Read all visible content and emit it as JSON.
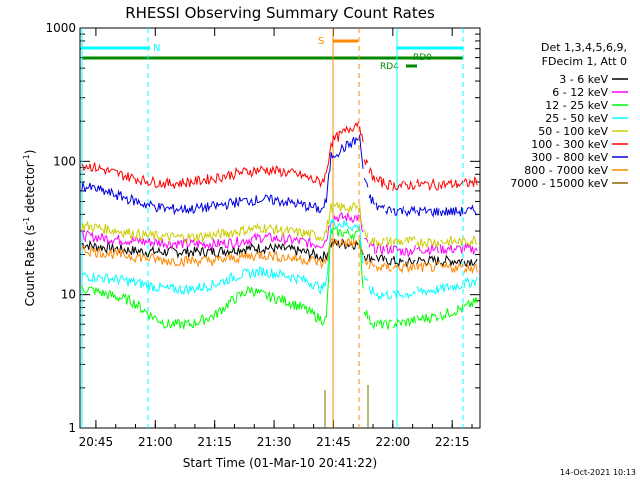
{
  "chart_data": {
    "type": "line",
    "title": "RHESSI Observing Summary Count Rates",
    "xlabel": "Start Time (01-Mar-10 20:41:22)",
    "ylabel": "Count Rate (s⁻¹ detector⁻¹)",
    "ylabel_parts": {
      "pre": "Count Rate (s",
      "sup1": "-1",
      "mid": " detector",
      "sup2": "-1",
      "post": ")"
    },
    "yscale": "log",
    "ylim": [
      1,
      1000
    ],
    "xlim_minutes": [
      20.683,
      22.367
    ],
    "x_ticks": [
      {
        "label": "20:45",
        "h": 20.75
      },
      {
        "label": "21:00",
        "h": 21.0
      },
      {
        "label": "21:15",
        "h": 21.25
      },
      {
        "label": "21:30",
        "h": 21.5
      },
      {
        "label": "21:45",
        "h": 21.75
      },
      {
        "label": "22:00",
        "h": 22.0
      },
      {
        "label": "22:15",
        "h": 22.25
      }
    ],
    "y_ticks": [
      {
        "label": "1",
        "v": 1
      },
      {
        "label": "10",
        "v": 10
      },
      {
        "label": "100",
        "v": 100
      },
      {
        "label": "1000",
        "v": 1000
      }
    ],
    "legend_header": [
      "Det 1,3,4,5,6,9,",
      "FDecim 1, Att 0"
    ],
    "series": [
      {
        "name": "3 - 6 keV",
        "color": "#000000",
        "x": [
          20.69,
          20.75,
          20.85,
          20.95,
          21.05,
          21.15,
          21.25,
          21.35,
          21.45,
          21.55,
          21.62,
          21.67,
          21.7,
          21.72,
          21.74,
          21.86,
          21.88,
          21.9,
          21.93,
          21.97,
          22.0,
          22.05,
          22.1,
          22.2,
          22.3,
          22.36
        ],
        "y": [
          24,
          23,
          22,
          21,
          21,
          21,
          21,
          22,
          22.5,
          22,
          21,
          20,
          19,
          20,
          24,
          24,
          20,
          19,
          19,
          18,
          18,
          17,
          18,
          18,
          18,
          18
        ]
      },
      {
        "name": "6 - 12 keV",
        "color": "#ff00ff",
        "x": [
          20.69,
          20.75,
          20.85,
          20.95,
          21.05,
          21.15,
          21.25,
          21.35,
          21.45,
          21.55,
          21.62,
          21.67,
          21.7,
          21.72,
          21.74,
          21.86,
          21.88,
          21.9,
          21.93,
          21.97,
          22.0,
          22.05,
          22.1,
          22.2,
          22.3,
          22.36
        ],
        "y": [
          28,
          27,
          26,
          25,
          24.5,
          24,
          24,
          25,
          27,
          26,
          25,
          24,
          24,
          26,
          38,
          38,
          26,
          23,
          22,
          22,
          22,
          21,
          22,
          22,
          22,
          22
        ]
      },
      {
        "name": "12 - 25 keV",
        "color": "#00ff00",
        "x": [
          20.69,
          20.72,
          20.8,
          20.9,
          20.98,
          21.05,
          21.15,
          21.25,
          21.32,
          21.4,
          21.45,
          21.55,
          21.62,
          21.67,
          21.7,
          21.72,
          21.74,
          21.86,
          21.88,
          21.9,
          21.93,
          21.97,
          22.0,
          22.05,
          22.1,
          22.2,
          22.3,
          22.36
        ],
        "y": [
          11,
          11,
          10,
          9,
          7,
          6,
          6,
          7,
          9,
          11,
          10,
          9,
          8,
          7,
          6.5,
          6.5,
          30,
          28,
          8,
          6.5,
          6,
          6,
          6,
          6.2,
          6.5,
          7,
          8,
          9
        ]
      },
      {
        "name": "25 - 50 keV",
        "color": "#00ffff",
        "x": [
          20.69,
          20.75,
          20.85,
          20.95,
          21.05,
          21.15,
          21.25,
          21.35,
          21.45,
          21.55,
          21.62,
          21.67,
          21.7,
          21.72,
          21.74,
          21.86,
          21.88,
          21.9,
          21.93,
          21.97,
          22.0,
          22.05,
          22.1,
          22.2,
          22.3,
          22.36
        ],
        "y": [
          14,
          13.5,
          13,
          12,
          11,
          11,
          12,
          14,
          15,
          14,
          13,
          12,
          11,
          12,
          35,
          32,
          14,
          11,
          10,
          10,
          10,
          10,
          10.5,
          11,
          12,
          13
        ]
      },
      {
        "name": "50 - 100 keV",
        "color": "#cccc00",
        "x": [
          20.69,
          20.75,
          20.85,
          20.95,
          21.05,
          21.15,
          21.25,
          21.35,
          21.45,
          21.55,
          21.62,
          21.67,
          21.7,
          21.72,
          21.74,
          21.86,
          21.88,
          21.9,
          21.93,
          21.97,
          22.0,
          22.05,
          22.1,
          22.2,
          22.3,
          22.36
        ],
        "y": [
          33,
          32,
          30,
          28,
          27,
          27,
          28,
          30,
          32,
          30,
          29,
          28,
          27,
          30,
          45,
          45,
          30,
          26,
          25,
          25,
          25,
          25,
          25,
          25,
          25,
          26
        ]
      },
      {
        "name": "100 - 300 keV",
        "color": "#ff0000",
        "x": [
          20.69,
          20.75,
          20.85,
          20.95,
          21.05,
          21.15,
          21.25,
          21.35,
          21.45,
          21.55,
          21.62,
          21.67,
          21.7,
          21.72,
          21.74,
          21.86,
          21.88,
          21.9,
          21.93,
          21.97,
          22.0,
          22.05,
          22.1,
          22.2,
          22.3,
          22.36
        ],
        "y": [
          95,
          90,
          80,
          72,
          68,
          70,
          75,
          82,
          87,
          83,
          78,
          72,
          70,
          80,
          140,
          200,
          110,
          85,
          72,
          68,
          66,
          66,
          67,
          67,
          68,
          70
        ]
      },
      {
        "name": "300 - 800 keV",
        "color": "#0000dd",
        "x": [
          20.69,
          20.75,
          20.85,
          20.95,
          21.05,
          21.15,
          21.25,
          21.35,
          21.45,
          21.55,
          21.62,
          21.67,
          21.7,
          21.72,
          21.74,
          21.86,
          21.88,
          21.9,
          21.93,
          21.97,
          22.0,
          22.05,
          22.1,
          22.2,
          22.3,
          22.36
        ],
        "y": [
          65,
          62,
          55,
          48,
          44,
          44,
          46,
          50,
          52,
          50,
          47,
          45,
          43,
          50,
          110,
          150,
          75,
          55,
          46,
          44,
          43,
          43,
          42,
          42,
          42,
          43
        ]
      },
      {
        "name": "800 - 7000 keV",
        "color": "#ff8800",
        "x": [
          20.69,
          20.75,
          20.85,
          20.95,
          21.05,
          21.15,
          21.25,
          21.35,
          21.45,
          21.55,
          21.62,
          21.67,
          21.7,
          21.72,
          21.74,
          21.86,
          21.88,
          21.9,
          21.93,
          21.97,
          22.0,
          22.05,
          22.1,
          22.2,
          22.3,
          22.36
        ],
        "y": [
          22,
          21,
          20,
          19,
          18,
          18,
          18,
          19,
          20,
          19,
          18.5,
          18,
          17,
          18,
          25,
          24,
          18,
          17,
          16,
          16,
          16,
          16,
          16,
          16,
          16,
          16
        ]
      },
      {
        "name": "7000 - 15000 keV",
        "color": "#886600",
        "x": [],
        "y": []
      }
    ]
  }
}
